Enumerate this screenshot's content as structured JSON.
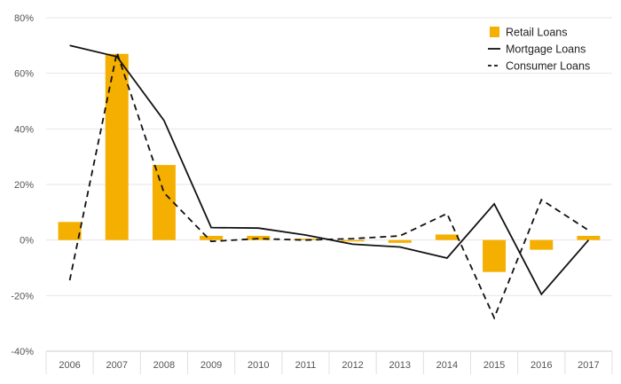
{
  "chart_data": {
    "type": "bar+line",
    "title": "",
    "xlabel": "",
    "ylabel": "",
    "categories": [
      "2006",
      "2007",
      "2008",
      "2009",
      "2010",
      "2011",
      "2012",
      "2013",
      "2014",
      "2015",
      "2016",
      "2017"
    ],
    "ylim": [
      -40,
      80
    ],
    "yticks": [
      -40,
      -20,
      0,
      20,
      40,
      60,
      80
    ],
    "ytick_labels": [
      "-40%",
      "-20%",
      "0%",
      "20%",
      "40%",
      "60%",
      "80%"
    ],
    "grid": true,
    "legend_position": "top-right",
    "series": [
      {
        "name": "Retail Loans",
        "kind": "bar",
        "color": "#F5AF00",
        "values": [
          6.5,
          67,
          27,
          1.5,
          1.5,
          0.5,
          -0.5,
          -1,
          2,
          -11.5,
          -3.5,
          1.5
        ]
      },
      {
        "name": "Mortgage Loans",
        "kind": "line",
        "style": "solid",
        "color": "#111111",
        "values": [
          70,
          66,
          43,
          4.5,
          4.3,
          1.8,
          -1.5,
          -2.5,
          -6.5,
          13,
          -19.5,
          0
        ]
      },
      {
        "name": "Consumer Loans",
        "kind": "line",
        "style": "dashed",
        "color": "#111111",
        "values": [
          -14.5,
          67.5,
          17,
          -0.5,
          0.5,
          0,
          0.5,
          1.5,
          9.5,
          -28,
          14.5,
          3.5
        ]
      }
    ]
  }
}
